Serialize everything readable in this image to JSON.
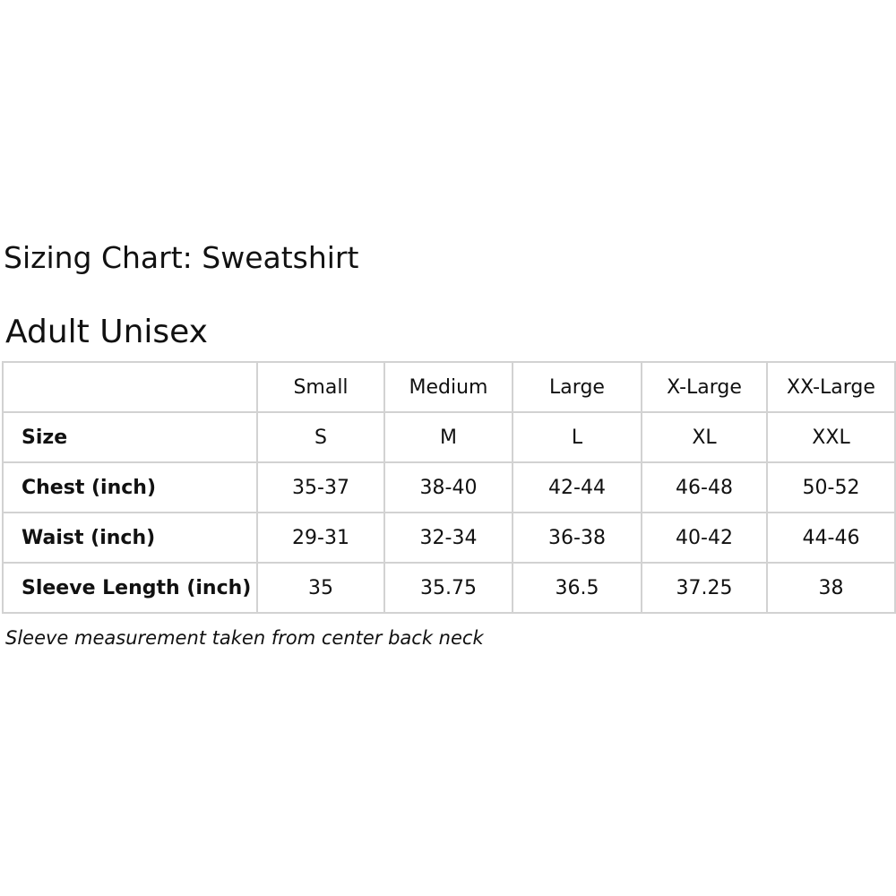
{
  "header": {
    "title": "Sizing Chart: Sweatshirt",
    "subtitle": "Adult Unisex"
  },
  "table": {
    "columns": [
      "Small",
      "Medium",
      "Large",
      "X-Large",
      "XX-Large"
    ],
    "rows": [
      [
        "Size",
        "S",
        "M",
        "L",
        "XL",
        "XXL"
      ],
      [
        "Chest (inch)",
        "35-37",
        "38-40",
        "42-44",
        "46-48",
        "50-52"
      ],
      [
        "Waist (inch)",
        "29-31",
        "32-34",
        "36-38",
        "40-42",
        "44-46"
      ],
      [
        "Sleeve Length (inch)",
        "35",
        "35.75",
        "36.5",
        "37.25",
        "38"
      ]
    ]
  },
  "note": "Sleeve measurement taken from center back neck"
}
